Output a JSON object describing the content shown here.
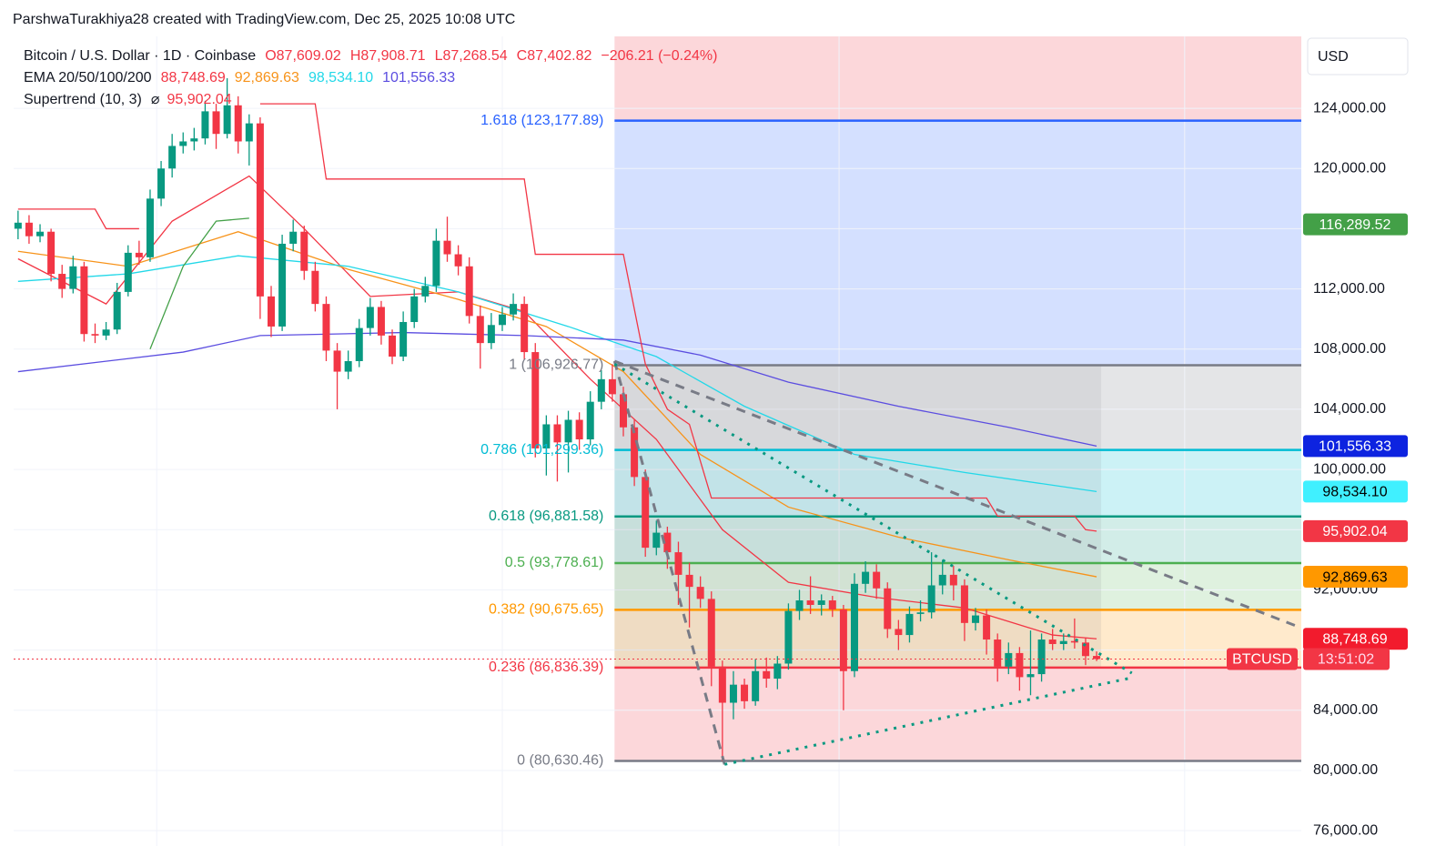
{
  "header": "ParshwaTurakhiya28 created with TradingView.com, Dec 25, 2025 10:08 UTC",
  "chart_data": {
    "type": "candlestick",
    "title": "Bitcoin / U.S. Dollar · 1D · Coinbase",
    "ohlc_labels": [
      {
        "text": "O87,609.02",
        "color": "#f23645"
      },
      {
        "text": "H87,908.71",
        "color": "#f23645"
      },
      {
        "text": "L87,268.54",
        "color": "#f23645"
      },
      {
        "text": "C87,402.82",
        "color": "#f23645"
      },
      {
        "text": "−206.21 (−0.24%)",
        "color": "#f23645"
      }
    ],
    "ema_title": "EMA 20/50/100/200",
    "supertrend_title": "Supertrend (10, 3)",
    "supertrend_symbol": "⌀",
    "supertrend_label": "95,902.04",
    "currency": "USD",
    "up_color": "#089981",
    "down_color": "#f23645",
    "xlim": [
      -0.4,
      116.6
    ],
    "ylim": [
      74980,
      128780
    ],
    "yticks": [
      {
        "value": 76000,
        "label": "76,000.00"
      },
      {
        "value": 80000,
        "label": "80,000.00"
      },
      {
        "value": 84000,
        "label": "84,000.00"
      },
      {
        "value": 88000,
        "label": "88,000.00"
      },
      {
        "value": 92000,
        "label": "92,000.00"
      },
      {
        "value": 96000,
        "label": "96,000.00"
      },
      {
        "value": 100000,
        "label": "100,000.00"
      },
      {
        "value": 104000,
        "label": "104,000.00"
      },
      {
        "value": 108000,
        "label": "108,000.00"
      },
      {
        "value": 112000,
        "label": "112,000.00"
      },
      {
        "value": 116000,
        "label": "116,000.00"
      },
      {
        "value": 120000,
        "label": "120,000.00"
      },
      {
        "value": 124000,
        "label": "124,000.00"
      }
    ],
    "xgrid": [
      12.6,
      44,
      74.6,
      106
    ],
    "candles": [
      [
        116000,
        117200,
        115300,
        116400
      ],
      [
        116400,
        116900,
        115000,
        115500
      ],
      [
        115500,
        116300,
        115100,
        115800
      ],
      [
        115800,
        116000,
        112500,
        113000
      ],
      [
        113000,
        113600,
        111400,
        112000
      ],
      [
        112000,
        114200,
        111700,
        113500
      ],
      [
        113500,
        113800,
        108500,
        109000
      ],
      [
        109000,
        109700,
        108400,
        108900
      ],
      [
        108900,
        109800,
        108600,
        109300
      ],
      [
        109300,
        112400,
        109000,
        111800
      ],
      [
        111800,
        114900,
        111500,
        114400
      ],
      [
        114400,
        115200,
        113600,
        114100
      ],
      [
        114100,
        118600,
        113800,
        118000
      ],
      [
        118000,
        120500,
        117500,
        120000
      ],
      [
        120000,
        122300,
        119400,
        121500
      ],
      [
        121500,
        122400,
        121000,
        121800
      ],
      [
        121800,
        122700,
        121200,
        122000
      ],
      [
        122000,
        124500,
        121600,
        123800
      ],
      [
        123800,
        124300,
        121300,
        122300
      ],
      [
        122300,
        126000,
        122000,
        124200
      ],
      [
        124200,
        124800,
        121000,
        121800
      ],
      [
        121800,
        123600,
        120200,
        123000
      ],
      [
        123000,
        123400,
        110000,
        111500
      ],
      [
        111500,
        112200,
        108800,
        109500
      ],
      [
        109500,
        115600,
        109200,
        115000
      ],
      [
        115000,
        116600,
        114500,
        115800
      ],
      [
        115800,
        116200,
        112600,
        113200
      ],
      [
        113200,
        113800,
        110500,
        111000
      ],
      [
        111000,
        111500,
        107200,
        107900
      ],
      [
        107900,
        108400,
        104000,
        106500
      ],
      [
        106500,
        107900,
        106000,
        107200
      ],
      [
        107200,
        110000,
        106800,
        109400
      ],
      [
        109400,
        111400,
        108900,
        110800
      ],
      [
        110800,
        111200,
        108300,
        108900
      ],
      [
        108900,
        109300,
        107000,
        107500
      ],
      [
        107500,
        110500,
        107200,
        109800
      ],
      [
        109800,
        112000,
        109400,
        111500
      ],
      [
        111500,
        112800,
        111100,
        112200
      ],
      [
        112200,
        116000,
        111800,
        115200
      ],
      [
        115200,
        116800,
        113800,
        114300
      ],
      [
        114300,
        114900,
        112900,
        113500
      ],
      [
        113500,
        114100,
        109700,
        110200
      ],
      [
        110200,
        110900,
        106700,
        108400
      ],
      [
        108400,
        110400,
        108000,
        109600
      ],
      [
        109600,
        110800,
        109200,
        110300
      ],
      [
        110300,
        111700,
        109900,
        111000
      ],
      [
        111000,
        111500,
        107300,
        107800
      ],
      [
        107800,
        108400,
        100800,
        101400
      ],
      [
        101400,
        103600,
        99600,
        103000
      ],
      [
        103000,
        103600,
        99200,
        101800
      ],
      [
        101800,
        103900,
        99800,
        103300
      ],
      [
        103300,
        103800,
        101300,
        102000
      ],
      [
        102000,
        105200,
        101600,
        104500
      ],
      [
        104500,
        106600,
        104000,
        106000
      ],
      [
        106000,
        107000,
        104500,
        105000
      ],
      [
        105000,
        105500,
        102200,
        102800
      ],
      [
        102800,
        103300,
        98900,
        99500
      ],
      [
        99500,
        100000,
        94200,
        94800
      ],
      [
        94800,
        96600,
        94300,
        95800
      ],
      [
        95800,
        96200,
        93400,
        94500
      ],
      [
        94500,
        95200,
        91000,
        93000
      ],
      [
        93000,
        93800,
        89500,
        92200
      ],
      [
        92200,
        92900,
        90800,
        91400
      ],
      [
        91400,
        91900,
        85600,
        86900
      ],
      [
        86900,
        87300,
        80600,
        84500
      ],
      [
        84500,
        86600,
        83400,
        85700
      ],
      [
        85700,
        86100,
        84100,
        84600
      ],
      [
        84600,
        87400,
        84300,
        86600
      ],
      [
        86600,
        87500,
        85500,
        86100
      ],
      [
        86100,
        87600,
        85400,
        87100
      ],
      [
        87100,
        91100,
        86700,
        90600
      ],
      [
        90600,
        92000,
        90000,
        91300
      ],
      [
        91300,
        92900,
        90400,
        91000
      ],
      [
        91000,
        91700,
        90300,
        91300
      ],
      [
        91300,
        91600,
        90200,
        90700
      ],
      [
        90700,
        91000,
        84000,
        86600
      ],
      [
        86600,
        93100,
        86200,
        92400
      ],
      [
        92400,
        93900,
        91800,
        93200
      ],
      [
        93200,
        93700,
        91400,
        92100
      ],
      [
        92100,
        92500,
        88800,
        89400
      ],
      [
        89400,
        90000,
        88000,
        89000
      ],
      [
        89000,
        90900,
        88500,
        90400
      ],
      [
        90400,
        91300,
        89900,
        90500
      ],
      [
        90500,
        94500,
        90100,
        92300
      ],
      [
        92300,
        94000,
        91700,
        93000
      ],
      [
        93000,
        93600,
        91300,
        92300
      ],
      [
        92300,
        92700,
        88600,
        89800
      ],
      [
        89800,
        90800,
        89300,
        90300
      ],
      [
        90300,
        90700,
        87700,
        88700
      ],
      [
        88700,
        89100,
        85900,
        86900
      ],
      [
        86900,
        88500,
        86400,
        87800
      ],
      [
        87800,
        88200,
        85300,
        86200
      ],
      [
        86200,
        89300,
        85000,
        86400
      ],
      [
        86400,
        89100,
        85900,
        88700
      ],
      [
        88700,
        89400,
        88000,
        88400
      ],
      [
        88400,
        89100,
        88000,
        88600
      ],
      [
        88600,
        90100,
        88100,
        88500
      ],
      [
        88500,
        88800,
        87000,
        87600
      ],
      [
        87609.02,
        87908.71,
        87268.54,
        87402.82
      ]
    ],
    "emas": [
      {
        "color": "#f23645",
        "legend_value": "88,748.69",
        "x": [
          0,
          8,
          14,
          21,
          26,
          32,
          40,
          46,
          52,
          58,
          64,
          70,
          78,
          86,
          94,
          98
        ],
        "values": [
          114000,
          111000,
          116500,
          119500,
          116000,
          111500,
          111800,
          110500,
          106000,
          102000,
          96000,
          92500,
          91500,
          90800,
          89000,
          88748.69
        ]
      },
      {
        "color": "#f7931a",
        "legend_value": "92,869.63",
        "x": [
          0,
          10,
          20,
          30,
          40,
          48,
          55,
          62,
          70,
          80,
          90,
          98
        ],
        "values": [
          114500,
          113500,
          115800,
          113300,
          111300,
          109500,
          106500,
          101000,
          97500,
          95500,
          94000,
          92869.63
        ]
      },
      {
        "color": "#22d8e8",
        "legend_value": "98,534.10",
        "x": [
          0,
          10,
          20,
          30,
          40,
          50,
          58,
          66,
          76,
          86,
          98
        ],
        "values": [
          112500,
          113000,
          114200,
          113500,
          111800,
          109500,
          107500,
          104200,
          101000,
          99800,
          98534.1
        ]
      },
      {
        "color": "#5b4de0",
        "legend_value": "101,556.33",
        "x": [
          0,
          15,
          22,
          35,
          46,
          55,
          62,
          70,
          80,
          90,
          98
        ],
        "values": [
          106500,
          107800,
          108900,
          109100,
          108900,
          108600,
          107600,
          105800,
          104200,
          102800,
          101556.33
        ]
      }
    ],
    "supertrend": [
      {
        "color": "#f23645",
        "x": [
          0,
          7,
          8,
          11
        ],
        "values": [
          117300,
          117300,
          116000,
          116000
        ]
      },
      {
        "color": "#43a047",
        "x": [
          12,
          15,
          18,
          21
        ],
        "values": [
          108000,
          113500,
          116500,
          116700
        ]
      },
      {
        "color": "#f23645",
        "x": [
          22,
          27,
          28,
          46,
          47,
          55,
          57,
          59,
          61,
          63,
          88,
          89,
          96,
          97,
          98
        ],
        "values": [
          124300,
          124300,
          119300,
          119300,
          114300,
          114300,
          107000,
          104000,
          103000,
          98100,
          98100,
          96900,
          96900,
          96000,
          95902.04
        ]
      }
    ],
    "fib_start": 54.2,
    "fib_levels": [
      {
        "label": "1.618 (123,177.89)",
        "value": 123177.89,
        "color": "#2962ff",
        "fill": "rgba(41,98,255,0.2)"
      },
      {
        "label": "1 (106,926.77)",
        "value": 106926.77,
        "color": "#787b86",
        "fill": "rgba(120,123,134,0.2)"
      },
      {
        "label": "0.786 (101,299.36)",
        "value": 101299.36,
        "color": "#00bcd4",
        "fill": "rgba(0,188,212,0.2)"
      },
      {
        "label": "0.618 (96,881.58)",
        "value": 96881.58,
        "color": "#089981",
        "fill": "rgba(8,153,129,0.18)"
      },
      {
        "label": "0.5 (93,778.61)",
        "value": 93778.61,
        "color": "#4caf50",
        "fill": "rgba(76,175,80,0.18)"
      },
      {
        "label": "0.382 (90,675.65)",
        "value": 90675.65,
        "color": "#ff9800",
        "fill": "rgba(255,152,0,0.2)"
      },
      {
        "label": "0.236 (86,836.39)",
        "value": 86836.39,
        "color": "#f23645",
        "fill": "rgba(242,54,69,0.2)"
      },
      {
        "label": "0 (80,630.46)",
        "value": 80630.46,
        "color": "#787b86",
        "fill": "none"
      }
    ],
    "top_fill": "rgba(242,54,69,0.2)",
    "drawings": [
      {
        "color": "#787b86",
        "dash": "10 8",
        "x": [
          54.2,
          116.5
        ],
        "values": [
          107200,
          89500
        ]
      },
      {
        "color": "#787b86",
        "dash": "10 8",
        "x": [
          54.2,
          64.2
        ],
        "values": [
          107200,
          80400
        ]
      },
      {
        "color": "#089981",
        "dash": "3 7",
        "x": [
          54.2,
          101.2
        ],
        "values": [
          107000,
          86470
        ]
      },
      {
        "color": "#089981",
        "dash": "3 7",
        "x": [
          64.2,
          101.2
        ],
        "values": [
          80400,
          86160
        ]
      }
    ],
    "price_tags": [
      {
        "label": "116,289.52",
        "value": 116289.52,
        "color": "#43a047",
        "text_color": "#fff"
      },
      {
        "label": "101,556.33",
        "value": 101556.33,
        "color": "#0d23e0",
        "text_color": "#fff"
      },
      {
        "label": "98,534.10",
        "value": 98534.1,
        "color": "#40f0ff",
        "text_color": "#000"
      },
      {
        "label": "95,902.04",
        "value": 95902.04,
        "color": "#f23645",
        "text_color": "#fff"
      },
      {
        "label": "92,869.63",
        "value": 92869.63,
        "color": "#ff9800",
        "text_color": "#000"
      },
      {
        "label": "88,748.69",
        "value": 88748.69,
        "color": "#f21b2d",
        "text_color": "#fff"
      }
    ],
    "last_price": {
      "symbol": "BTCUSD",
      "countdown": "13:51:02",
      "value": 87402.82,
      "color": "#f23645"
    }
  }
}
